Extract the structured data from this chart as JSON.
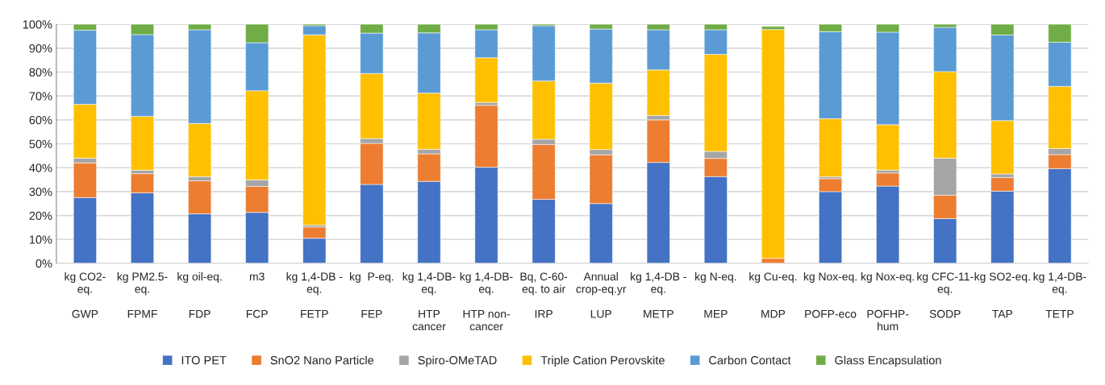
{
  "chart_data": {
    "type": "bar",
    "stacked": true,
    "categories": [
      "kg CO2-\neq.\n\nGWP",
      "kg PM2.5-\neq.\n\nFPMF",
      "kg oil-eq.\n\n\nFDP",
      "m3\n\n\nFCP",
      "kg 1,4-DB -\neq.\n\nFETP",
      "kg  P-eq.\n\n\nFEP",
      "kg 1,4-DB-\neq.\n\nHTP\ncancer",
      "kg 1,4-DB-\neq.\n\nHTP non-\ncancer",
      "Bq, C-60-\neq. to air\n\nIRP",
      "Annual\ncrop-eq.yr\n\nLUP",
      "kg 1,4-DB -\neq.\n\nMETP",
      "kg N-eq.\n\n\nMEP",
      "kg Cu-eq.\n\n\nMDP",
      "kg Nox-eq.\n\n\nPOFP-eco",
      "kg Nox-eq.\n\n\nPOFHP-\nhum",
      "kg CFC-11-\neq.\n\nSODP",
      "kg SO2-eq.\n\n\nTAP",
      "kg 1,4-DB-\neq.\n\nTETP"
    ],
    "series": [
      {
        "name": "ITO PET",
        "color": "#4472c4",
        "values": [
          27.5,
          29.5,
          20.7,
          21.3,
          10.5,
          33,
          34.3,
          40.2,
          26.8,
          25,
          42.2,
          36.3,
          null,
          30,
          32.3,
          18.7,
          30.2,
          39.6
        ]
      },
      {
        "name": "SnO2 Nano Particle",
        "color": "#ed7d31",
        "values": [
          14.5,
          8,
          13.8,
          10.9,
          4.7,
          17.2,
          11.5,
          25.9,
          22.9,
          20.4,
          17.8,
          7.6,
          2.1,
          5.4,
          5.5,
          9.8,
          5.7,
          5.9
        ]
      },
      {
        "name": "Spiro-OMeTAD",
        "color": "#a5a5a5",
        "values": [
          2,
          1.5,
          1.8,
          2.7,
          0.8,
          2,
          1.9,
          1.2,
          2.2,
          2.2,
          1.8,
          2.9,
          null,
          0.8,
          1.2,
          15.5,
          1.5,
          2.5
        ]
      },
      {
        "name": "Triple Cation Perovskite",
        "color": "#ffc000",
        "values": [
          22.5,
          22.5,
          22.2,
          37.3,
          79.6,
          27.2,
          23.5,
          18.7,
          24.4,
          27.8,
          19.1,
          40.6,
          95.7,
          24.3,
          19,
          36.2,
          22.3,
          26
        ]
      },
      {
        "name": "Carbon Contact",
        "color": "#5b9bd5",
        "values": [
          31,
          34.2,
          39.2,
          20.1,
          3.8,
          16.9,
          25.2,
          11.7,
          23.1,
          22.6,
          16.8,
          10.3,
          null,
          36.4,
          38.7,
          18.5,
          35.8,
          18.5
        ]
      },
      {
        "name": "Glass Encapsulation",
        "color": "#70ad47",
        "values": [
          2.5,
          4.3,
          2.3,
          7.7,
          0.6,
          3.7,
          3.6,
          2.3,
          0.6,
          2,
          2.3,
          2.3,
          1.3,
          3.1,
          3.3,
          1.3,
          4.5,
          7.5
        ]
      }
    ],
    "ylim": [
      0,
      100
    ],
    "yticks": [
      {
        "value": 0,
        "label": "0%"
      },
      {
        "value": 10,
        "label": "10%"
      },
      {
        "value": 20,
        "label": "20%"
      },
      {
        "value": 30,
        "label": "30%"
      },
      {
        "value": 40,
        "label": "40%"
      },
      {
        "value": 50,
        "label": "50%"
      },
      {
        "value": 60,
        "label": "60%"
      },
      {
        "value": 70,
        "label": "70%"
      },
      {
        "value": 80,
        "label": "80%"
      },
      {
        "value": 90,
        "label": "90%"
      },
      {
        "value": 100,
        "label": "100%"
      }
    ],
    "grid": "y",
    "legend": "bottom"
  }
}
